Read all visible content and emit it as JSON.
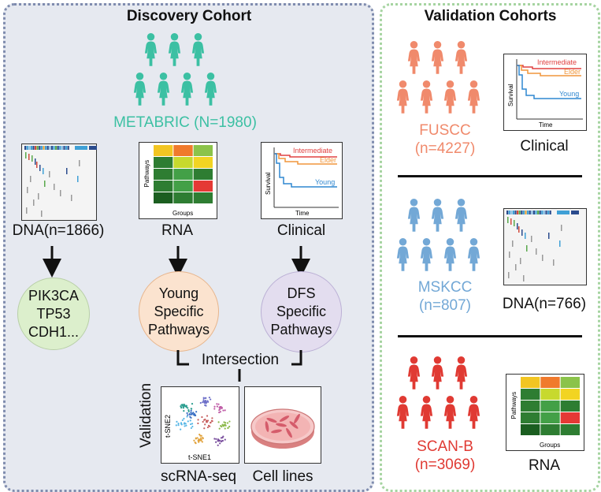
{
  "discovery": {
    "title": "Discovery Cohort",
    "cohort_label": "METABRIC (N=1980)",
    "cohort_color": "#3cc0a3",
    "panels": {
      "dna_label": "DNA(n=1866)",
      "rna_label": "RNA",
      "clinical_label": "Clinical"
    },
    "heatmap_axis": {
      "y": "Pathways",
      "x": "Groups"
    },
    "survival": {
      "y": "Survival",
      "x": "Time",
      "lines": [
        "Intermediate",
        "Elder",
        "Young"
      ]
    },
    "genes": [
      "PIK3CA",
      "TP53",
      "CDH1..."
    ],
    "young_pathways": [
      "Young",
      "Specific",
      "Pathways"
    ],
    "dfs_pathways": [
      "DFS",
      "Specific",
      "Pathways"
    ],
    "intersection_label": "Intersection",
    "validation_label": "Validation",
    "tsne_axis": {
      "y": "t-SNE2",
      "x": "t-SNE1"
    },
    "scrna_label": "scRNA-seq",
    "cell_lines_label": "Cell lines"
  },
  "validation": {
    "title": "Validation Cohorts",
    "cohorts": [
      {
        "name": "FUSCC",
        "n": "(n=4227)",
        "color": "#f08a6c",
        "data_label": "Clinical"
      },
      {
        "name": "MSKCC",
        "n": "(n=807)",
        "color": "#73a8d6",
        "data_label": "DNA(n=766)"
      },
      {
        "name": "SCAN-B",
        "n": "(n=3069)",
        "color": "#e03a33",
        "data_label": "RNA"
      }
    ],
    "heatmap_axis": {
      "y": "Pathways",
      "x": "Groups"
    },
    "survival": {
      "y": "Survival",
      "x": "Time",
      "lines": [
        "Intermediate",
        "Elder",
        "Young"
      ]
    }
  },
  "colors": {
    "discovery_bg": "#e6e9f0",
    "discovery_border": "#7f8cae",
    "validation_border": "#a6d4a1",
    "genes_circle": "#dcefcc",
    "young_circle": "#fbe3cf",
    "dfs_circle": "#e3ddef",
    "survival_intermediate": "#e04040",
    "survival_elder": "#f0963c",
    "survival_young": "#2f87d0"
  },
  "heatmap_cells": [
    [
      "#f2c522",
      "#f07a2c",
      "#8bc34a"
    ],
    [
      "#2e7d32",
      "#c7d92e",
      "#f2d422"
    ],
    [
      "#2e7d32",
      "#43a047",
      "#2e7d32"
    ],
    [
      "#2e7d32",
      "#43a047",
      "#e53935"
    ],
    [
      "#1b5e20",
      "#2e7d32",
      "#2e7d32"
    ]
  ]
}
